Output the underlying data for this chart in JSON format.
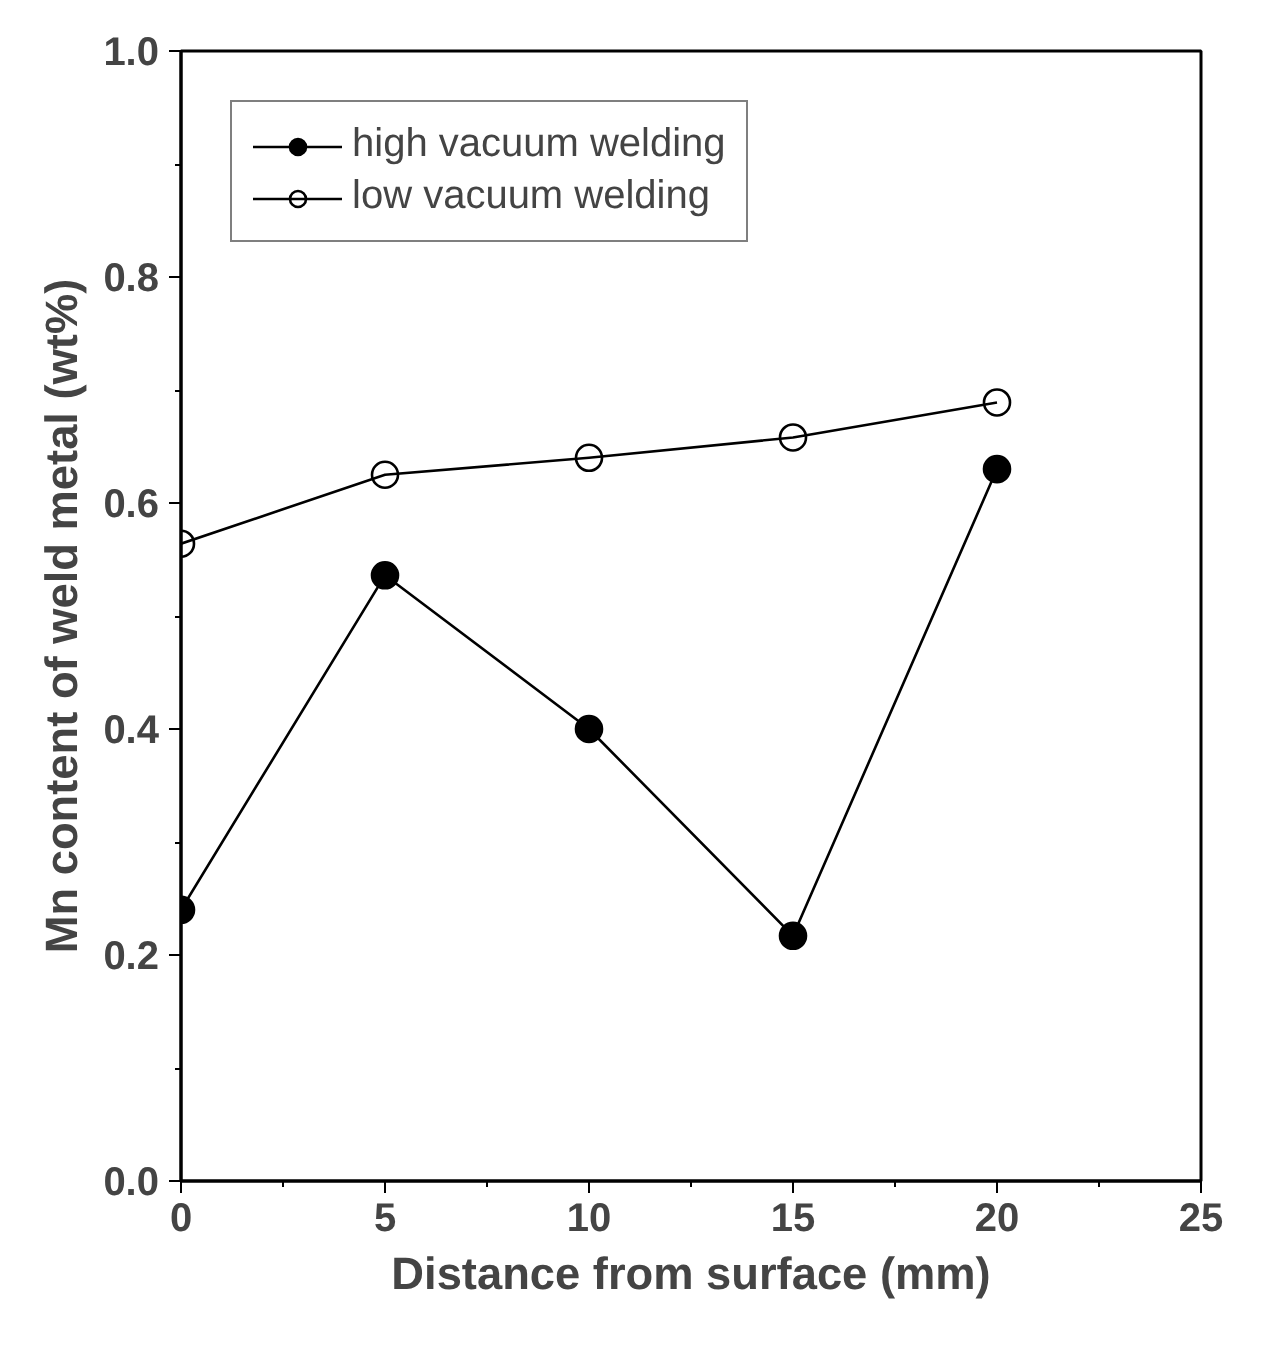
{
  "chart_data": {
    "type": "line",
    "xlabel": "Distance from surface (mm)",
    "ylabel": "Mn content of weld metal (wt%)",
    "x": [
      0,
      5,
      10,
      15,
      20
    ],
    "series": [
      {
        "name": "high vacuum welding",
        "color": "#000000",
        "values": [
          0.24,
          0.536,
          0.4,
          0.217,
          0.63
        ],
        "marker": "circle"
      },
      {
        "name": "low vacuum welding",
        "color": "#000000",
        "values": [
          0.564,
          0.625,
          0.64,
          0.658,
          0.689
        ],
        "marker": "open_circle"
      }
    ],
    "xlim": [
      0,
      25
    ],
    "xticks": [
      0,
      5,
      10,
      15,
      20,
      25
    ],
    "ylim": [
      0,
      1
    ],
    "yticks": [
      {
        "value": 0,
        "label": "0.0"
      },
      0.2,
      0.4,
      0.6,
      0.8,
      {
        "value": 1,
        "label": "1.0"
      }
    ],
    "grid": false,
    "legend": "top left"
  }
}
